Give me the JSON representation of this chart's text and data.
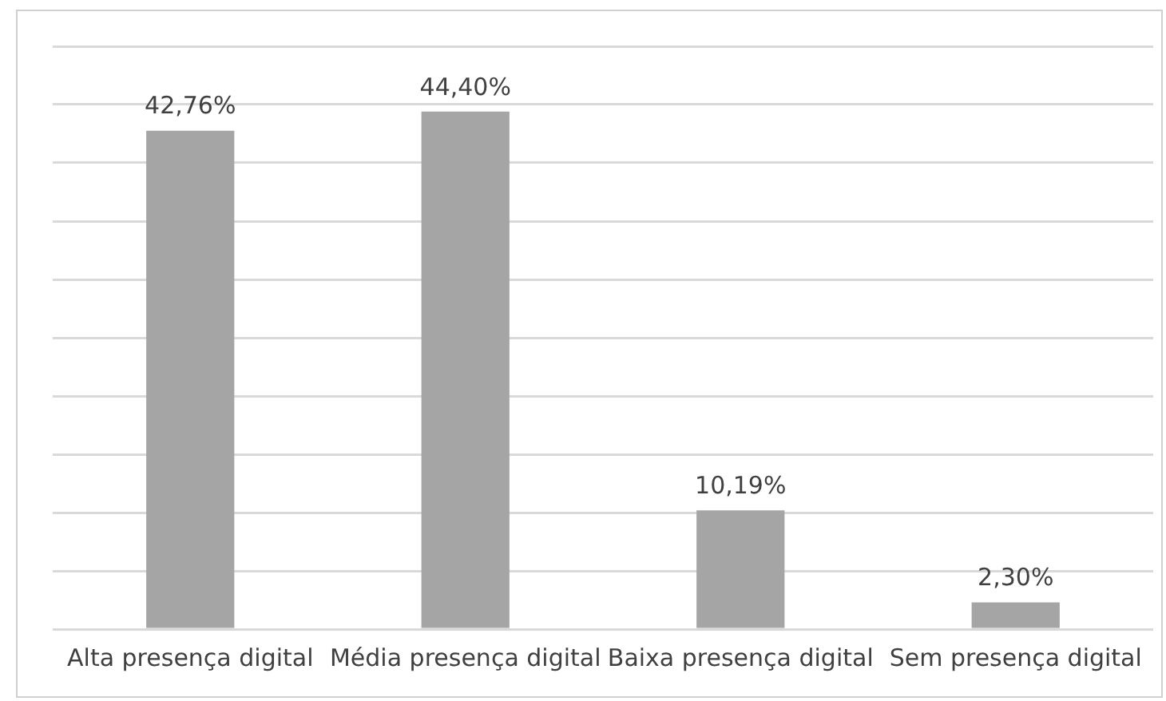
{
  "chart_data": {
    "type": "bar",
    "categories": [
      "Alta presença digital",
      "Média presença digital",
      "Baixa presença digital",
      "Sem presença digital"
    ],
    "values": [
      42.76,
      44.4,
      10.19,
      2.3
    ],
    "color": "#a5a5a5",
    "value_labels": [
      "42,76%",
      "44,40%",
      "10,19%",
      "2,30%"
    ],
    "ylim": [
      0,
      50
    ],
    "yticks": [
      {
        "value": 0,
        "label": null
      },
      {
        "value": 5,
        "label": null
      },
      {
        "value": 10,
        "label": null
      },
      {
        "value": 15,
        "label": null
      },
      {
        "value": 20,
        "label": null
      },
      {
        "value": 25,
        "label": null
      },
      {
        "value": 30,
        "label": null
      },
      {
        "value": 35,
        "label": null
      },
      {
        "value": 40,
        "label": null
      },
      {
        "value": 45,
        "label": null
      },
      {
        "value": 50,
        "label": null
      }
    ],
    "grid": "y",
    "tick_labels": "x",
    "legend": false
  }
}
